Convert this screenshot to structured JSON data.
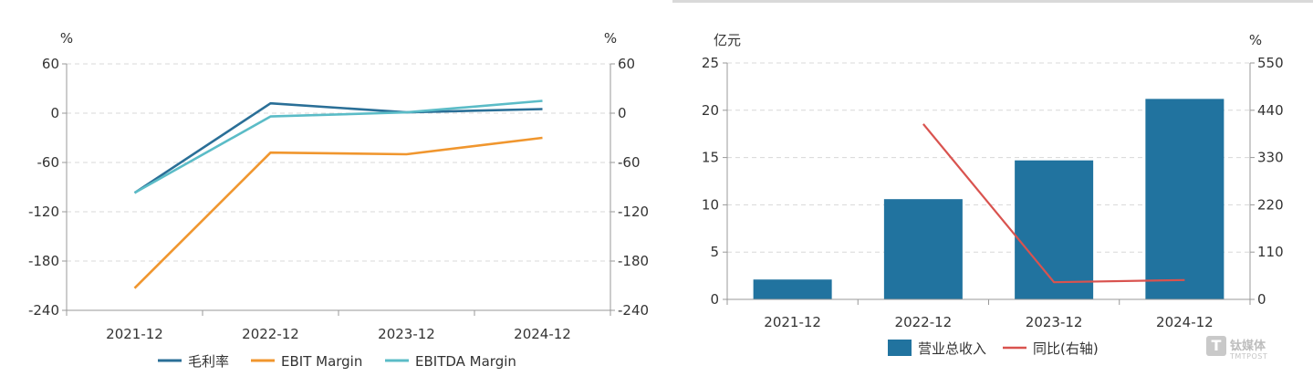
{
  "chart_data": [
    {
      "type": "line",
      "categories": [
        "2021-12",
        "2022-12",
        "2023-12",
        "2024-12"
      ],
      "y_left": {
        "unit": "%",
        "lim": [
          -240,
          60
        ],
        "ticks": [
          "60",
          "0",
          "-60",
          "-120",
          "-180",
          "-240"
        ]
      },
      "y_right": {
        "unit": "%",
        "lim": [
          -240,
          60
        ],
        "ticks": [
          "60",
          "0",
          "-60",
          "-120",
          "-180",
          "-240"
        ]
      },
      "grid": true,
      "legend_position": "bottom",
      "series": [
        {
          "name": "毛利率",
          "color": "#2a6f97",
          "values": [
            -97,
            12,
            1,
            5
          ]
        },
        {
          "name": "EBIT Margin",
          "color": "#f0962e",
          "values": [
            -213,
            -48,
            -50,
            -30
          ]
        },
        {
          "name": "EBITDA Margin",
          "color": "#5bbcc7",
          "values": [
            -97,
            -4,
            1,
            15
          ]
        }
      ]
    },
    {
      "type": "bar",
      "categories": [
        "2021-12",
        "2022-12",
        "2023-12",
        "2024-12"
      ],
      "y_left": {
        "unit": "亿元",
        "lim": [
          0,
          25
        ],
        "ticks": [
          "25",
          "20",
          "15",
          "10",
          "5",
          "0"
        ]
      },
      "y_right": {
        "unit": "%",
        "lim": [
          0,
          550
        ],
        "ticks": [
          "550",
          "440",
          "330",
          "220",
          "110",
          "0"
        ]
      },
      "grid": true,
      "legend_position": "bottom",
      "series": [
        {
          "name": "营业总收入",
          "type": "bar",
          "axis": "left",
          "color": "#21739f",
          "values": [
            2.1,
            10.6,
            14.7,
            21.2
          ]
        },
        {
          "name": "同比(右轴)",
          "type": "line",
          "axis": "right",
          "color": "#d9534f",
          "values": [
            null,
            408,
            40,
            45
          ]
        }
      ]
    }
  ],
  "watermark": {
    "mark": "T",
    "name_cn": "钛媒体",
    "name_en": "TMTPOST"
  }
}
